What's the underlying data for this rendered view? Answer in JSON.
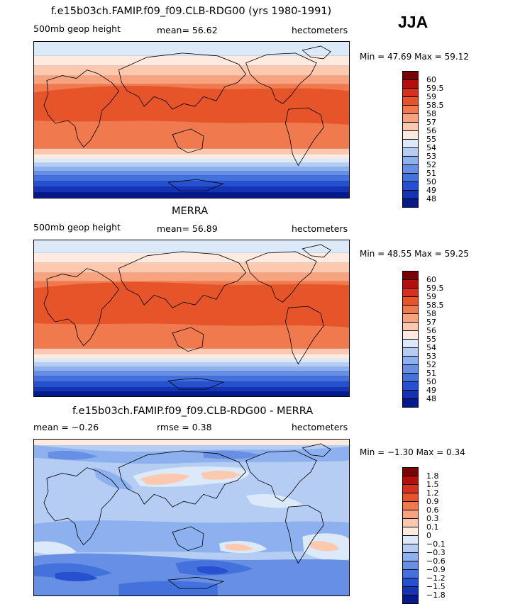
{
  "season": "JJA",
  "panels": [
    {
      "title": "f.e15b03ch.FAMIP.f09_f09.CLB-RDG00 (yrs 1980-1991)",
      "left_label": "500mb geop height",
      "center_label": "mean=  56.62",
      "units": "hectometers",
      "minmax": "Min =  47.69 Max =  59.12",
      "colorbar": {
        "colors": [
          "#7a0403",
          "#b40f0b",
          "#d7301f",
          "#e6552a",
          "#f07a4e",
          "#f8a37f",
          "#fcc9ae",
          "#feeadf",
          "#dbe9f8",
          "#b5cdf3",
          "#8db0ee",
          "#6790e5",
          "#4372dc",
          "#2551d0",
          "#1434b3",
          "#051a8a"
        ],
        "ticks": [
          "60",
          "59.5",
          "59",
          "58.5",
          "58",
          "57",
          "56",
          "55",
          "54",
          "53",
          "52",
          "51",
          "50",
          "49",
          "48"
        ]
      }
    },
    {
      "title": "MERRA",
      "left_label": "500mb geop height",
      "center_label": "mean=  56.89",
      "units": "hectometers",
      "minmax": "Min =  48.55 Max =  59.25",
      "colorbar": {
        "colors": [
          "#7a0403",
          "#b40f0b",
          "#d7301f",
          "#e6552a",
          "#f07a4e",
          "#f8a37f",
          "#fcc9ae",
          "#feeadf",
          "#dbe9f8",
          "#b5cdf3",
          "#8db0ee",
          "#6790e5",
          "#4372dc",
          "#2551d0",
          "#1434b3",
          "#051a8a"
        ],
        "ticks": [
          "60",
          "59.5",
          "59",
          "58.5",
          "58",
          "57",
          "56",
          "55",
          "54",
          "53",
          "52",
          "51",
          "50",
          "49",
          "48"
        ]
      }
    },
    {
      "title": "f.e15b03ch.FAMIP.f09_f09.CLB-RDG00 - MERRA",
      "left_label": "mean =  −0.26",
      "center_label": "rmse =   0.38",
      "units": "hectometers",
      "minmax": "Min =  −1.30 Max =   0.34",
      "colorbar": {
        "colors": [
          "#7a0403",
          "#b40f0b",
          "#d7301f",
          "#e6552a",
          "#f07a4e",
          "#f8a37f",
          "#fcc9ae",
          "#feeadf",
          "#dbe9f8",
          "#b5cdf3",
          "#8db0ee",
          "#6790e5",
          "#4372dc",
          "#2551d0",
          "#1434b3",
          "#051a8a"
        ],
        "ticks": [
          "1.8",
          "1.5",
          "1.2",
          "0.9",
          "0.6",
          "0.3",
          "0.1",
          "0",
          "−0.1",
          "−0.3",
          "−0.6",
          "−0.9",
          "−1.2",
          "−1.5",
          "−1.8"
        ]
      }
    }
  ]
}
